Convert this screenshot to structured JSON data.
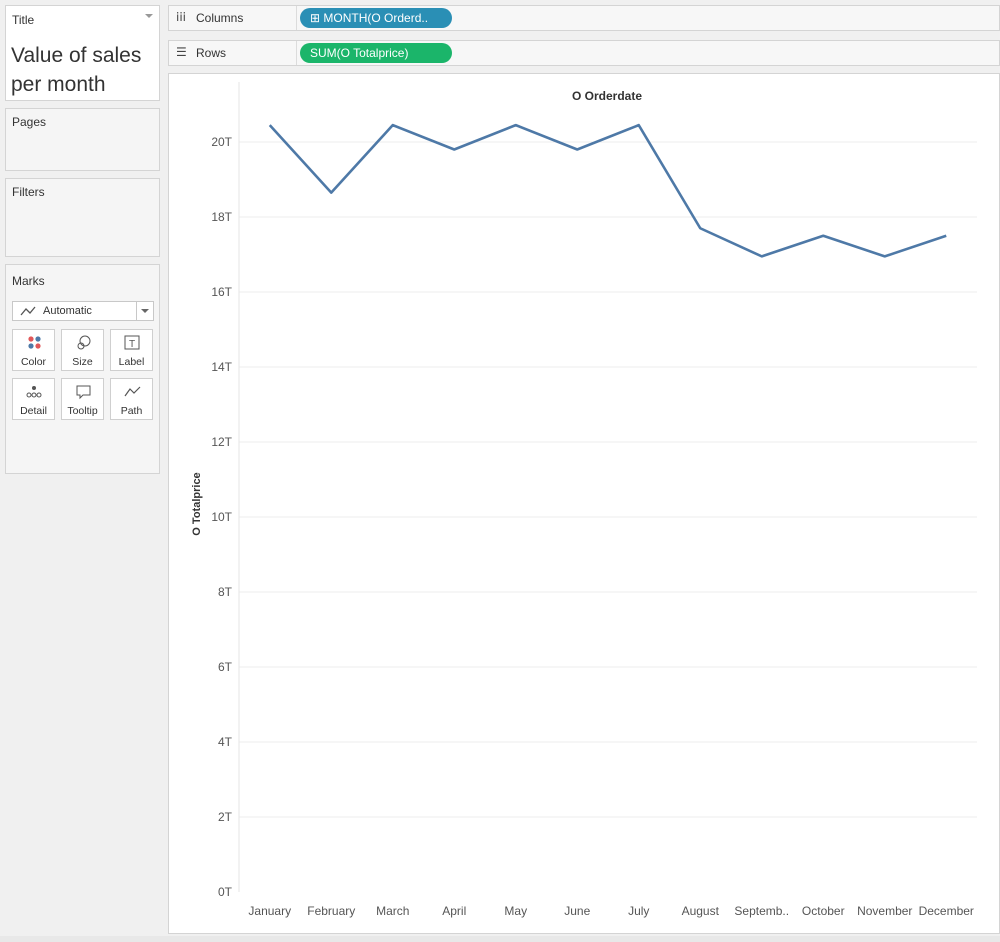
{
  "cards": {
    "title": {
      "label": "Title",
      "text": "Value of sales per month"
    },
    "pages": {
      "label": "Pages"
    },
    "filters": {
      "label": "Filters"
    },
    "marks": {
      "label": "Marks",
      "type_label": "Automatic",
      "buttons": [
        {
          "label": "Color",
          "icon": "color-dots-icon"
        },
        {
          "label": "Size",
          "icon": "size-icon"
        },
        {
          "label": "Label",
          "icon": "text-label-icon"
        },
        {
          "label": "Detail",
          "icon": "detail-dots-icon"
        },
        {
          "label": "Tooltip",
          "icon": "tooltip-icon"
        },
        {
          "label": "Path",
          "icon": "path-icon"
        }
      ]
    }
  },
  "shelves": {
    "columns": {
      "label": "Columns",
      "pill": "⊞ MONTH(O Orderd..",
      "pill_color": "#2a8fb5"
    },
    "rows": {
      "label": "Rows",
      "pill": "SUM(O Totalprice)",
      "pill_color": "#1bb56a"
    }
  },
  "chart_data": {
    "type": "line",
    "title": "O Orderdate",
    "ylabel": "O Totalprice",
    "xlabel": "",
    "categories": [
      "January",
      "February",
      "March",
      "April",
      "May",
      "June",
      "July",
      "August",
      "Septemb..",
      "October",
      "November",
      "December"
    ],
    "series": [
      {
        "values": [
          20.45,
          18.65,
          20.45,
          19.8,
          20.45,
          19.8,
          20.45,
          17.7,
          16.95,
          17.5,
          16.95,
          17.5
        ],
        "color": "#4e79a7"
      }
    ],
    "y_unit_suffix": "T",
    "ylim": [
      0,
      21.6
    ],
    "yticks": [
      0,
      2,
      4,
      6,
      8,
      10,
      12,
      14,
      16,
      18,
      20
    ],
    "grid": true
  }
}
